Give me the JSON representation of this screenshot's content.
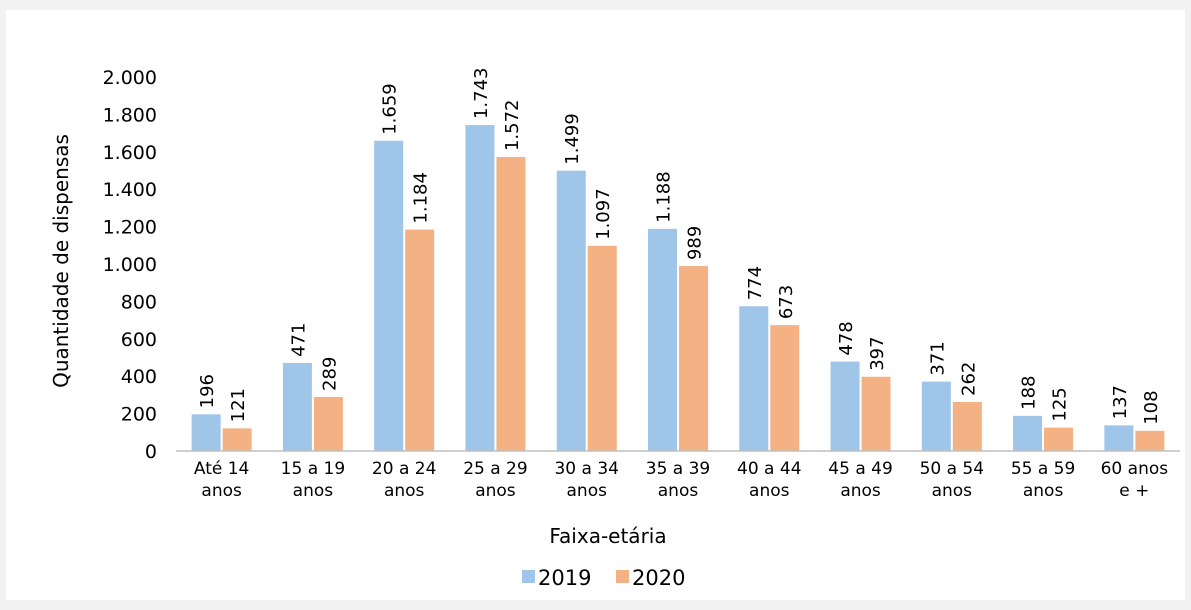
{
  "chart_data": {
    "type": "bar",
    "categories": [
      [
        "Até 14",
        "anos"
      ],
      [
        "15 a 19",
        "anos"
      ],
      [
        "20 a 24",
        "anos"
      ],
      [
        "25 a 29",
        "anos"
      ],
      [
        "30 a 34",
        "anos"
      ],
      [
        "35 a 39",
        "anos"
      ],
      [
        "40 a 44",
        "anos"
      ],
      [
        "45 a 49",
        "anos"
      ],
      [
        "50 a 54",
        "anos"
      ],
      [
        "55 a 59",
        "anos"
      ],
      [
        "60 anos",
        "e +"
      ]
    ],
    "series": [
      {
        "name": "2019",
        "color": "#9fc5e8",
        "values": [
          196,
          471,
          1659,
          1743,
          1499,
          1188,
          774,
          478,
          371,
          188,
          137
        ],
        "labels": [
          "196",
          "471",
          "1.659",
          "1.743",
          "1.499",
          "1.188",
          "774",
          "478",
          "371",
          "188",
          "137"
        ]
      },
      {
        "name": "2020",
        "color": "#f4b183",
        "values": [
          121,
          289,
          1184,
          1572,
          1097,
          989,
          673,
          397,
          262,
          125,
          108
        ],
        "labels": [
          "121",
          "289",
          "1.184",
          "1.572",
          "1.097",
          "989",
          "673",
          "397",
          "262",
          "125",
          "108"
        ]
      }
    ],
    "xlabel": "Faixa-etária",
    "ylabel": "Quantidade de dispensas",
    "ylim": [
      0,
      2000
    ],
    "yticks": [
      0,
      200,
      400,
      600,
      800,
      1000,
      1200,
      1400,
      1600,
      1800,
      2000
    ],
    "ytick_labels": [
      "0",
      "200",
      "400",
      "600",
      "800",
      "1.000",
      "1.200",
      "1.400",
      "1.600",
      "1.800",
      "2.000"
    ],
    "grid": false,
    "legend_position": "bottom"
  }
}
